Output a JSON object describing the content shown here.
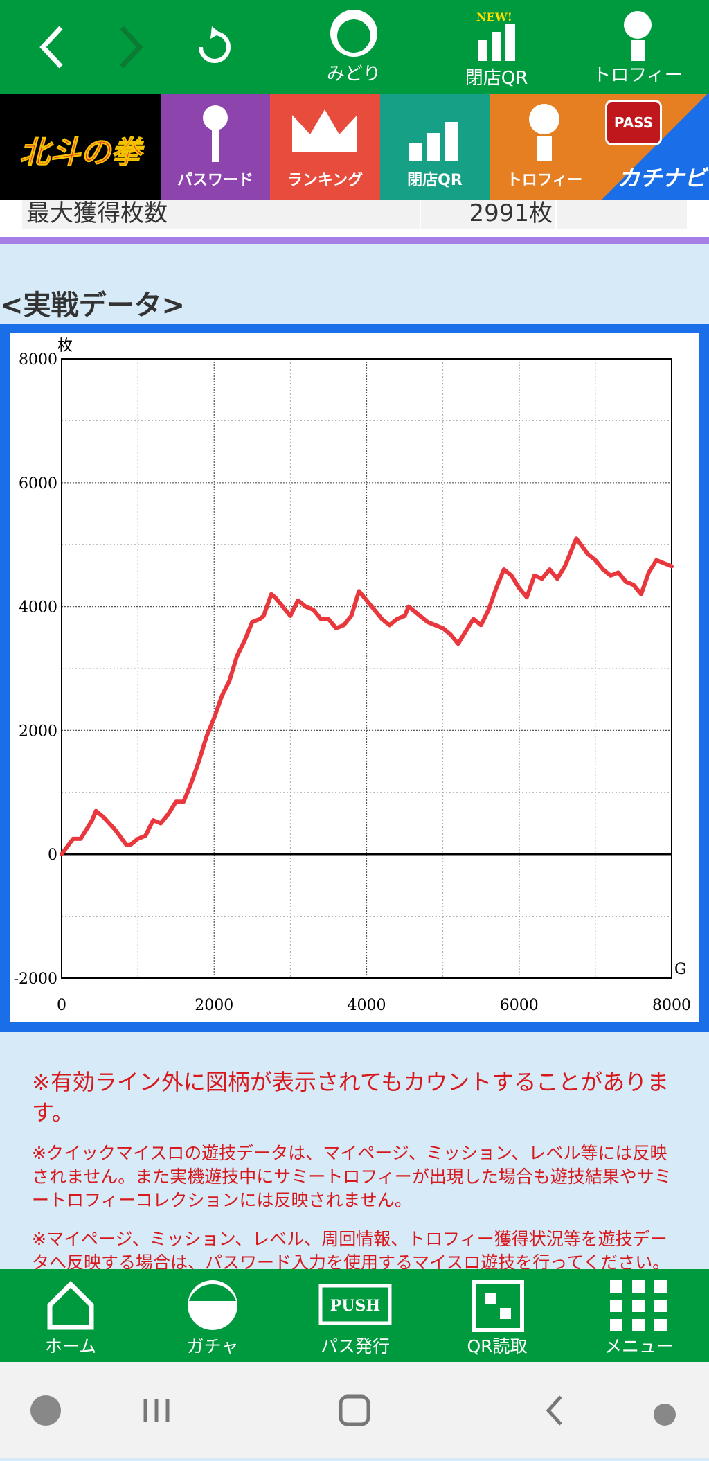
{
  "top_nav": {
    "items": [
      "みどり",
      "閉店QR",
      "トロフィー"
    ],
    "badge": "NEW!"
  },
  "tabs": {
    "logo": "北斗の拳",
    "items": [
      "パスワード",
      "ランキング",
      "閉店QR",
      "トロフィー"
    ],
    "pass": "PASS",
    "katinavi": "カチナビ"
  },
  "table": {
    "rows": [
      [
        "最大獲得枚数",
        "2991枚",
        ""
      ]
    ]
  },
  "section_title": "<実戦データ>",
  "chart_data": {
    "type": "line",
    "y_unit": "枚",
    "x_unit": "G",
    "x": [
      0,
      150,
      250,
      400,
      450,
      550,
      700,
      850,
      900,
      1000,
      1100,
      1200,
      1300,
      1400,
      1500,
      1600,
      1700,
      1800,
      1900,
      2000,
      2100,
      2200,
      2300,
      2400,
      2500,
      2600,
      2650,
      2750,
      2800,
      2900,
      3000,
      3100,
      3200,
      3300,
      3400,
      3500,
      3600,
      3700,
      3800,
      3900,
      4000,
      4100,
      4200,
      4300,
      4400,
      4500,
      4550,
      4700,
      4800,
      4900,
      5000,
      5100,
      5200,
      5300,
      5400,
      5500,
      5600,
      5700,
      5800,
      5900,
      6000,
      6100,
      6200,
      6300,
      6400,
      6500,
      6600,
      6750,
      6900,
      7000,
      7100,
      7200,
      7300,
      7400,
      7500,
      7600,
      7700,
      7800,
      7900,
      8000
    ],
    "values": [
      0,
      250,
      250,
      550,
      700,
      600,
      400,
      150,
      150,
      250,
      300,
      550,
      500,
      650,
      850,
      850,
      1150,
      1500,
      1900,
      2200,
      2550,
      2800,
      3200,
      3450,
      3750,
      3800,
      3850,
      4200,
      4150,
      4000,
      3850,
      4100,
      4000,
      3950,
      3800,
      3800,
      3650,
      3700,
      3850,
      4250,
      4100,
      3950,
      3800,
      3700,
      3800,
      3850,
      4000,
      3850,
      3750,
      3700,
      3650,
      3550,
      3400,
      3600,
      3800,
      3700,
      3950,
      4300,
      4600,
      4500,
      4300,
      4150,
      4500,
      4450,
      4600,
      4450,
      4650,
      5100,
      4850,
      4750,
      4600,
      4500,
      4550,
      4400,
      4350,
      4200,
      4550,
      4750,
      4700,
      4650
    ],
    "color": "#e8383d",
    "xlim": [
      0,
      8000
    ],
    "ylim": [
      -2000,
      8000
    ],
    "xticks": [
      0,
      2000,
      4000,
      6000,
      8000
    ],
    "yticks": [
      -2000,
      0,
      2000,
      4000,
      6000,
      8000
    ],
    "minor_xticks": [
      1000,
      3000,
      5000,
      7000
    ],
    "minor_yticks": [
      -1000,
      1000,
      3000,
      5000,
      7000
    ],
    "grid": true
  },
  "notes": [
    "※有効ライン外に図柄が表示されてもカウントすることがあります。",
    "※クイックマイスロの遊技データは、マイページ、ミッション、レベル等には反映されません。また実機遊技中にサミートロフィーが出現した場合も遊技結果やサミートロフィーコレクションには反映されません。",
    "※マイページ、ミッション、レベル、周回情報、トロフィー獲得状況等を遊技データへ反映する場合は、パスワード入力を使用するマイスロ遊技を行ってください。"
  ],
  "bottom_nav": {
    "items": [
      "ホーム",
      "ガチャ",
      "パス発行",
      "QR読取",
      "メニュー"
    ],
    "push": "PUSH"
  }
}
